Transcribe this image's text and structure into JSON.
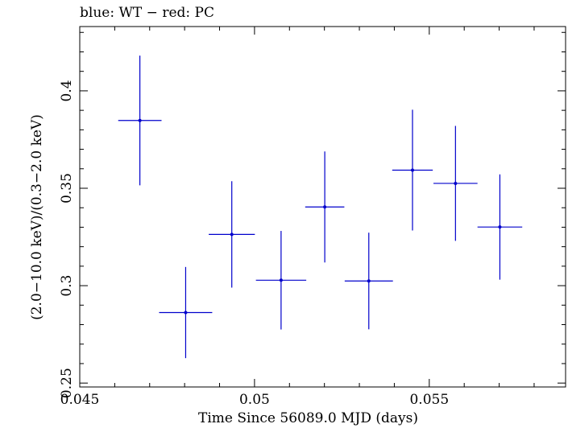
{
  "chart_data": {
    "type": "scatter",
    "title": "blue: WT − red: PC",
    "xlabel": "Time Since 56089.0 MJD (days)",
    "ylabel": "(2.0−10.0 keV)/(0.3−2.0 keV)",
    "xlim": [
      0.045,
      0.0589
    ],
    "ylim": [
      0.248,
      0.433
    ],
    "x_ticks": [
      0.045,
      0.05,
      0.055
    ],
    "x_tick_labels": [
      "0.045",
      "0.05",
      "0.055"
    ],
    "y_ticks": [
      0.25,
      0.3,
      0.35,
      0.4
    ],
    "y_tick_labels": [
      "0.25",
      "0.3",
      "0.35",
      "0.4"
    ],
    "series": [
      {
        "name": "WT",
        "color": "#0000cc",
        "points": [
          {
            "x": 0.04672,
            "y": 0.3848,
            "xerr": 0.00062,
            "yerr": 0.0333
          },
          {
            "x": 0.04803,
            "y": 0.2862,
            "xerr": 0.00076,
            "yerr": 0.0234
          },
          {
            "x": 0.04935,
            "y": 0.3263,
            "xerr": 0.00066,
            "yerr": 0.0273
          },
          {
            "x": 0.05076,
            "y": 0.3028,
            "xerr": 0.00072,
            "yerr": 0.0253
          },
          {
            "x": 0.05201,
            "y": 0.3404,
            "xerr": 0.00056,
            "yerr": 0.0285
          },
          {
            "x": 0.05327,
            "y": 0.3024,
            "xerr": 0.00069,
            "yerr": 0.0248
          },
          {
            "x": 0.05452,
            "y": 0.3593,
            "xerr": 0.00058,
            "yerr": 0.031
          },
          {
            "x": 0.05575,
            "y": 0.3525,
            "xerr": 0.00063,
            "yerr": 0.0295
          },
          {
            "x": 0.05702,
            "y": 0.3301,
            "xerr": 0.00064,
            "yerr": 0.027
          }
        ]
      }
    ]
  }
}
